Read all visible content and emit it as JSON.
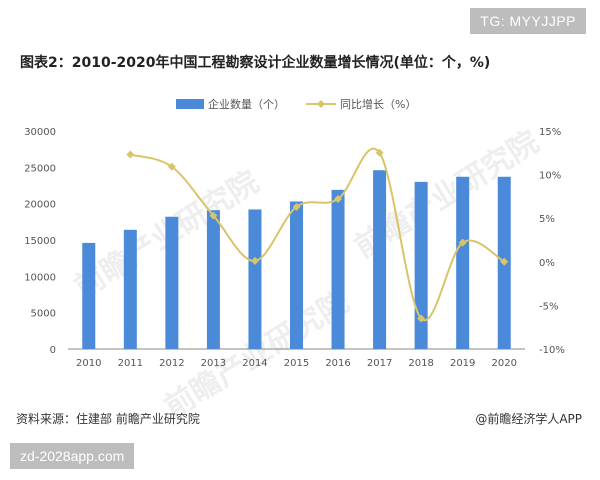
{
  "watermark_top": "TG: MYYJJPP",
  "watermark_bottom": "zd-2028app.com",
  "watermark_logo": "前瞻产业研究院",
  "title": "图表2：2010-2020年中国工程勘察设计企业数量增长情况(单位：个，%)",
  "source": "资料来源：住建部 前瞻产业研究院",
  "brand": "@前瞻经济学人APP",
  "colors": {
    "bar": "#4a8ad8",
    "line": "#d9c46a",
    "axis": "#888888",
    "text": "#555555"
  },
  "chart_data": {
    "type": "bar+line",
    "categories": [
      "2010",
      "2011",
      "2012",
      "2013",
      "2014",
      "2015",
      "2016",
      "2017",
      "2018",
      "2019",
      "2020"
    ],
    "series": [
      {
        "name": "企业数量（个）",
        "type": "bar",
        "axis": "left",
        "values": [
          14600,
          16400,
          18200,
          19100,
          19200,
          20300,
          21900,
          24600,
          23000,
          23700,
          23700
        ]
      },
      {
        "name": "同比增长（%）",
        "type": "line",
        "axis": "right",
        "values": [
          null,
          12.3,
          10.9,
          5.3,
          0.1,
          6.3,
          7.2,
          12.5,
          -6.5,
          2.2,
          0.0
        ]
      }
    ],
    "left_axis": {
      "ylim": [
        0,
        30000
      ],
      "ticks": [
        "0",
        "5000",
        "10000",
        "15000",
        "20000",
        "25000",
        "30000"
      ]
    },
    "right_axis": {
      "ylim": [
        -10,
        15
      ],
      "ticks": [
        "-10%",
        "-5%",
        "0%",
        "5%",
        "10%",
        "15%"
      ]
    },
    "legend_position": "top-center"
  }
}
